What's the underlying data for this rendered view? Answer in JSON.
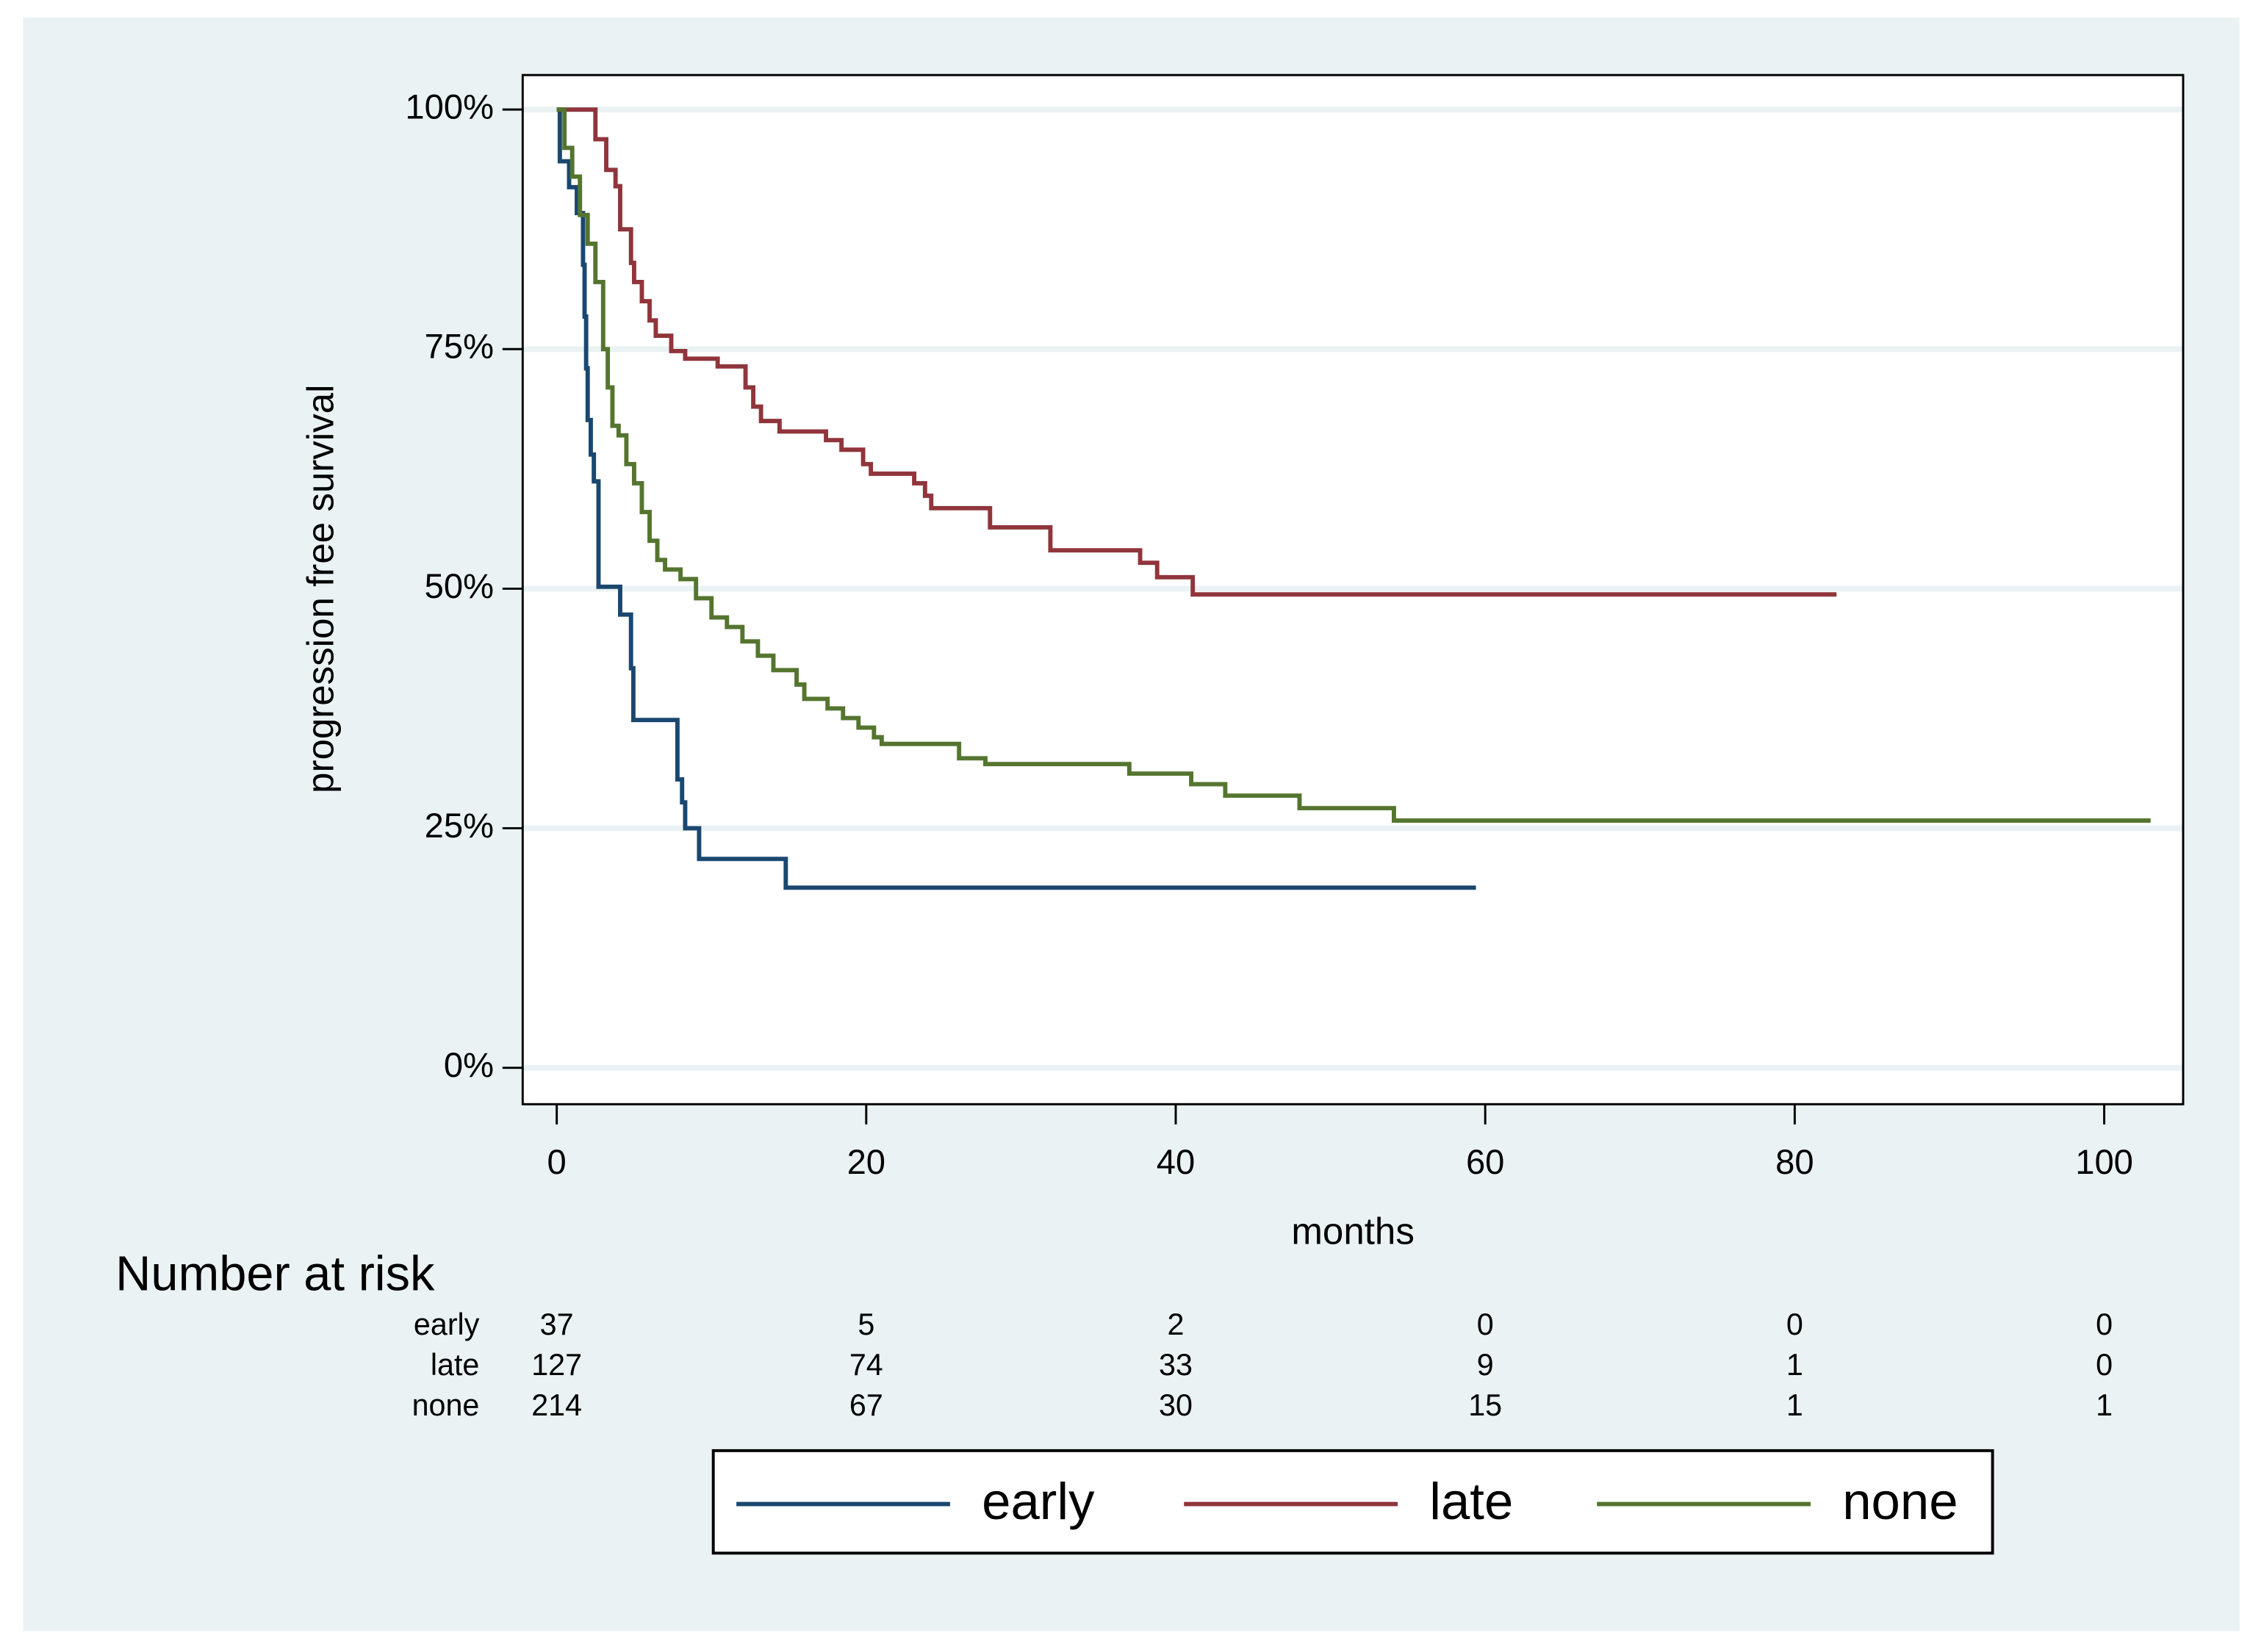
{
  "chart_data": {
    "type": "step",
    "y_label": "progression free survival",
    "x_label": "months",
    "xlim": [
      -2.2,
      105.1
    ],
    "ylim": [
      -3.8,
      103.6
    ],
    "xticks": [
      0,
      20,
      40,
      60,
      80,
      100
    ],
    "yticks": [
      {
        "value": 0,
        "label": "0%"
      },
      {
        "value": 25,
        "label": "25%"
      },
      {
        "value": 50,
        "label": "50%"
      },
      {
        "value": 75,
        "label": "75%"
      },
      {
        "value": 100,
        "label": "100%"
      }
    ],
    "grid": true,
    "legend": "bottom",
    "series": [
      {
        "name": "early",
        "color": "#1a476f",
        "x": [
          0,
          0.2,
          0.8,
          1.3,
          1.7,
          1.8,
          1.9,
          2.0,
          2.2,
          2.4,
          2.7,
          4.1,
          4.8,
          4.95,
          7.8,
          8.1,
          8.3,
          9.2,
          14.8,
          59.4
        ],
        "values": [
          100,
          94.6,
          91.9,
          89.2,
          83.8,
          78.4,
          73.0,
          67.6,
          64.0,
          61.2,
          50.2,
          47.3,
          41.7,
          36.3,
          30.1,
          27.7,
          25.0,
          21.8,
          18.8,
          18.8
        ]
      },
      {
        "name": "late",
        "color": "#90353b",
        "x": [
          0,
          2.5,
          3.2,
          3.8,
          4.1,
          4.8,
          5.0,
          5.5,
          6.0,
          6.4,
          7.4,
          8.3,
          10.4,
          12.2,
          12.7,
          13.2,
          14.4,
          17.4,
          18.4,
          19.8,
          20.3,
          23.1,
          23.8,
          24.2,
          28.0,
          31.9,
          37.7,
          38.8,
          41.1,
          82.7
        ],
        "values": [
          100,
          96.9,
          93.7,
          92.0,
          87.5,
          84.0,
          82.0,
          80.0,
          78.0,
          76.4,
          74.8,
          74.0,
          73.2,
          71.0,
          69.0,
          67.5,
          66.4,
          65.5,
          64.5,
          63.0,
          62.0,
          61.0,
          59.7,
          58.4,
          56.4,
          54.0,
          52.7,
          51.2,
          49.4,
          49.4
        ]
      },
      {
        "name": "none",
        "color": "#55752f",
        "x": [
          0,
          0.5,
          1.0,
          1.5,
          2.0,
          2.5,
          3.0,
          3.3,
          3.6,
          4.0,
          4.5,
          5.0,
          5.5,
          6.0,
          6.5,
          7.0,
          8.0,
          9.0,
          10.0,
          11.0,
          12.0,
          13.0,
          14.0,
          15.5,
          16.0,
          17.5,
          18.5,
          19.5,
          20.5,
          21.0,
          26.0,
          27.7,
          37.0,
          41.0,
          43.2,
          48.0,
          54.1,
          103.0
        ],
        "values": [
          100,
          96,
          93,
          89,
          86,
          82,
          75,
          71,
          67,
          66,
          63,
          61,
          58,
          55,
          53,
          52,
          51,
          49,
          47,
          46,
          44.5,
          43,
          41.5,
          40,
          38.5,
          37.5,
          36.5,
          35.5,
          34.5,
          33.8,
          32.3,
          31.7,
          30.7,
          29.6,
          28.4,
          27.1,
          25.8,
          25.8
        ]
      }
    ],
    "risk_table": {
      "title": "Number at risk",
      "rows": [
        {
          "name": "early",
          "values": [
            37,
            5,
            2,
            0,
            0,
            0
          ]
        },
        {
          "name": "late",
          "values": [
            127,
            74,
            33,
            9,
            1,
            0
          ]
        },
        {
          "name": "none",
          "values": [
            214,
            67,
            30,
            15,
            1,
            1
          ]
        }
      ]
    }
  }
}
